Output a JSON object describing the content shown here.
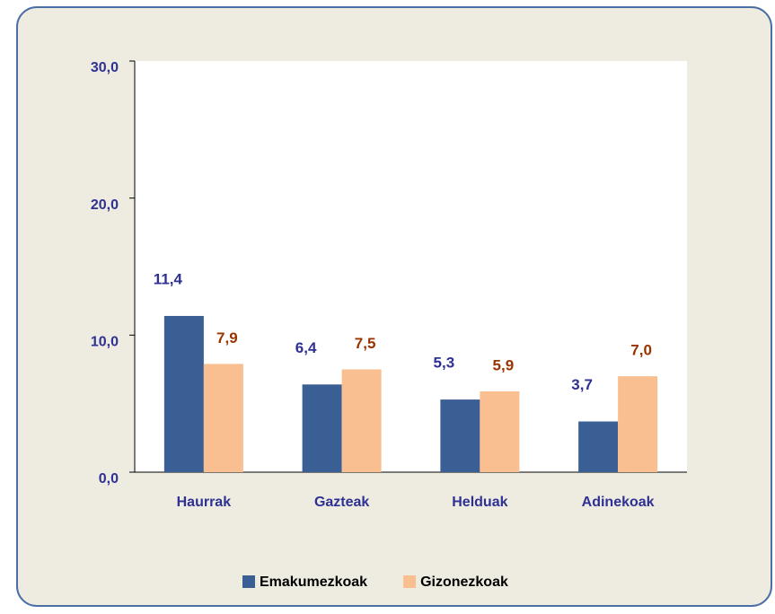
{
  "chart_data": {
    "type": "bar",
    "categories": [
      "Haurrak",
      "Gazteak",
      "Helduak",
      "Adinekoak"
    ],
    "series": [
      {
        "name": "Emakumezkoak",
        "color": "#3a5f94",
        "values": [
          11.4,
          6.4,
          5.3,
          3.7
        ],
        "value_labels": [
          "11,4",
          "6,4",
          "5,3",
          "3,7"
        ]
      },
      {
        "name": "Gizonezkoak",
        "color": "#f9bf90",
        "values": [
          7.9,
          7.5,
          5.9,
          7.0
        ],
        "value_labels": [
          "7,9",
          "7,5",
          "5,9",
          "7,0"
        ]
      }
    ],
    "ylim": [
      0,
      30
    ],
    "yticks": [
      {
        "value": 0,
        "label": "0,0"
      },
      {
        "value": 10,
        "label": "10,0"
      },
      {
        "value": 20,
        "label": "20,0"
      },
      {
        "value": 30,
        "label": "30,0"
      }
    ],
    "grid": false,
    "legend": "bottom"
  }
}
